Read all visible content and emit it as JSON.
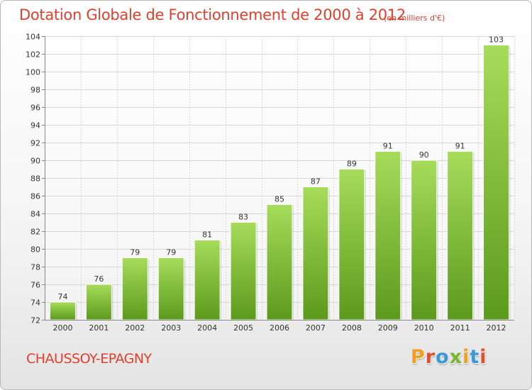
{
  "title": "Dotation Globale de Fonctionnement de 2000 à 2012",
  "unit": "(en milliers d'€)",
  "commune": "CHAUSSOY-EPAGNY",
  "logo": {
    "letters": [
      "P",
      "r",
      "o",
      "x",
      "i",
      "t",
      "i"
    ],
    "colors": [
      "#f0a020",
      "#e05030",
      "#3a9ad9",
      "#7ab530",
      "#f0a020",
      "#3a9ad9",
      "#e05030"
    ]
  },
  "chart_data": {
    "type": "bar",
    "title": "Dotation Globale de Fonctionnement de 2000 à 2012",
    "categories": [
      "2000",
      "2001",
      "2002",
      "2003",
      "2004",
      "2005",
      "2006",
      "2007",
      "2008",
      "2009",
      "2010",
      "2011",
      "2012"
    ],
    "values": [
      74,
      76,
      79,
      79,
      81,
      83,
      85,
      87,
      89,
      91,
      90,
      91,
      103
    ],
    "data_labels": [
      "74",
      "76",
      "79",
      "79",
      "81",
      "83",
      "85",
      "87",
      "89",
      "91",
      "90",
      "91",
      "103"
    ],
    "yticks": [
      "72",
      "74",
      "76",
      "78",
      "80",
      "82",
      "84",
      "86",
      "88",
      "90",
      "92",
      "94",
      "96",
      "98",
      "100",
      "102",
      "104"
    ],
    "ylim": [
      72,
      104
    ],
    "ytick_step": 2,
    "grid": true,
    "bar_color": "#7ab82e",
    "bar_color_light": "#a6dc5a",
    "bar_color_dark": "#5c9a1c"
  }
}
